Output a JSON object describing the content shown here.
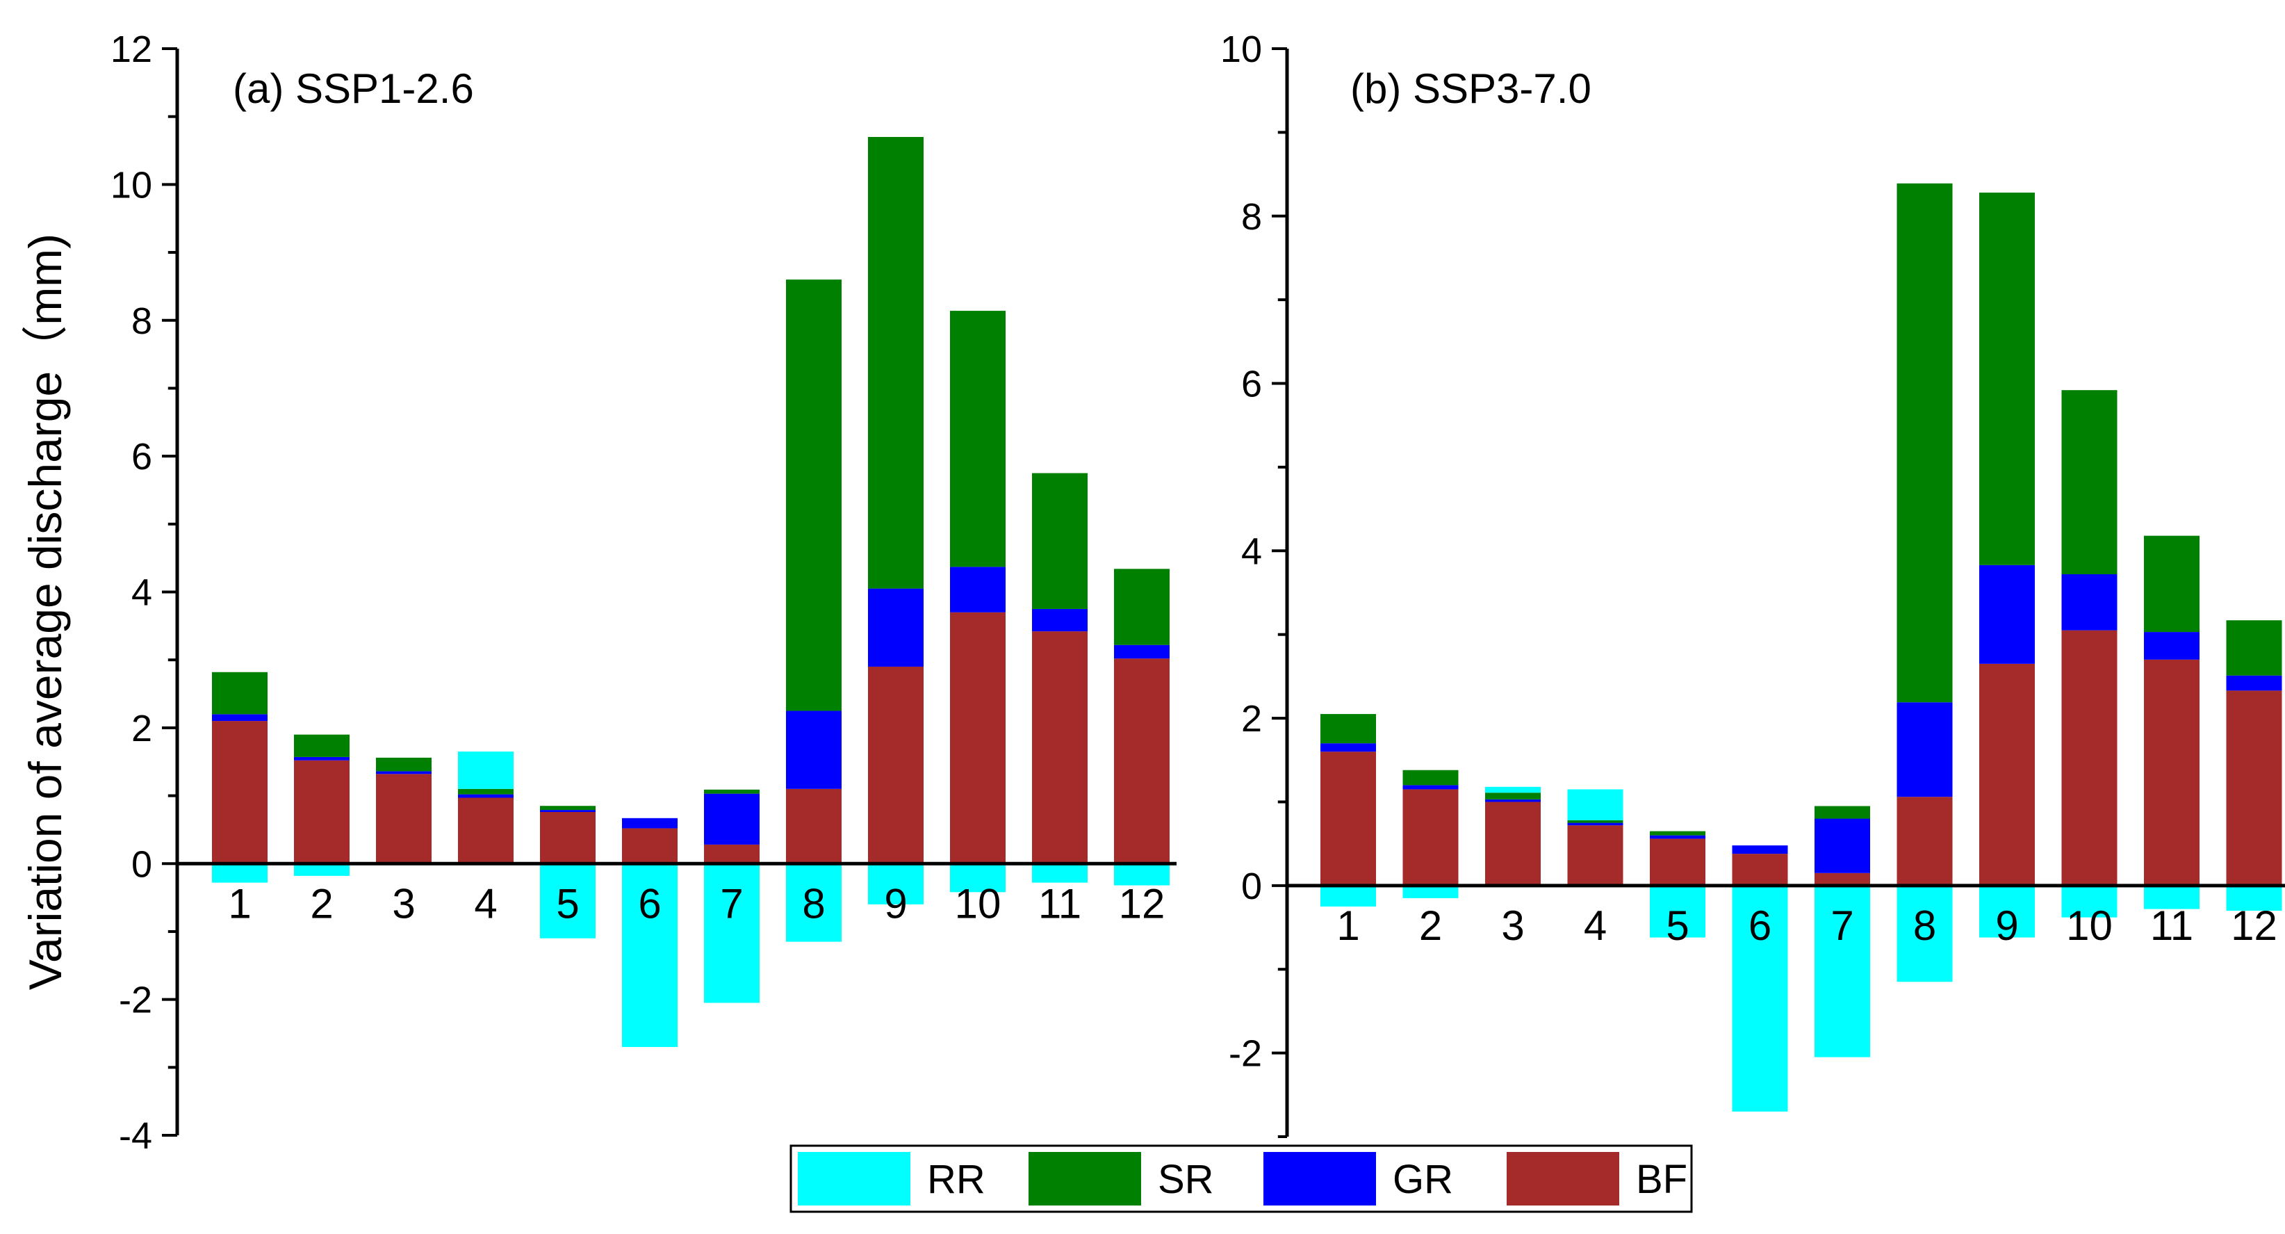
{
  "chart_data": {
    "type": "bar",
    "stacked": true,
    "ylabel": "Variation of average discharge（mm)",
    "series_names": [
      "RR",
      "SR",
      "GR",
      "BF"
    ],
    "colors": {
      "RR": "#00ffff",
      "SR": "#008000",
      "GR": "#0000ff",
      "BF": "#a52a2a"
    },
    "categories": [
      "1",
      "2",
      "3",
      "4",
      "5",
      "6",
      "7",
      "8",
      "9",
      "10",
      "11",
      "12"
    ],
    "panels": [
      {
        "title": "(a) SSP1-2.6",
        "ylim": [
          -4,
          12
        ],
        "yticks": [
          -4,
          -2,
          0,
          2,
          4,
          6,
          8,
          10,
          12
        ],
        "ytick_labels": [
          "-4",
          "-2",
          "0",
          "2",
          "4",
          "6",
          "8",
          "10",
          "12"
        ],
        "series": [
          {
            "name": "BF",
            "values": [
              2.1,
              1.52,
              1.32,
              0.97,
              0.76,
              0.52,
              0.28,
              1.1,
              2.9,
              3.7,
              3.42,
              3.02
            ]
          },
          {
            "name": "GR",
            "values": [
              0.1,
              0.05,
              0.04,
              0.05,
              0.03,
              0.15,
              0.75,
              1.15,
              1.15,
              0.67,
              0.33,
              0.2
            ]
          },
          {
            "name": "SR",
            "values": [
              0.62,
              0.33,
              0.2,
              0.08,
              0.06,
              0.0,
              0.06,
              6.35,
              6.65,
              3.77,
              2.0,
              1.12
            ]
          },
          {
            "name": "RR",
            "values": [
              -0.28,
              -0.18,
              0.0,
              0.55,
              -1.1,
              -2.7,
              -2.05,
              -1.15,
              -0.6,
              -0.42,
              -0.28,
              -0.32
            ]
          }
        ]
      },
      {
        "title": "(b) SSP3-7.0",
        "ylim": [
          -3,
          10
        ],
        "yticks": [
          -2,
          0,
          2,
          4,
          6,
          8,
          10
        ],
        "ytick_labels": [
          "-2",
          "0",
          "2",
          "4",
          "6",
          "8",
          "10"
        ],
        "series": [
          {
            "name": "BF",
            "values": [
              1.6,
              1.15,
              1.0,
              0.72,
              0.56,
              0.38,
              0.15,
              1.06,
              2.65,
              3.05,
              2.7,
              2.33
            ]
          },
          {
            "name": "GR",
            "values": [
              0.1,
              0.05,
              0.03,
              0.03,
              0.04,
              0.1,
              0.65,
              1.13,
              1.18,
              0.67,
              0.33,
              0.18
            ]
          },
          {
            "name": "SR",
            "values": [
              0.35,
              0.18,
              0.08,
              0.03,
              0.05,
              0.0,
              0.15,
              6.2,
              4.45,
              2.2,
              1.15,
              0.66
            ]
          },
          {
            "name": "RR",
            "values": [
              -0.25,
              -0.15,
              0.07,
              0.37,
              -0.62,
              -2.7,
              -2.05,
              -1.15,
              -0.62,
              -0.38,
              -0.28,
              -0.3
            ]
          }
        ]
      }
    ]
  }
}
